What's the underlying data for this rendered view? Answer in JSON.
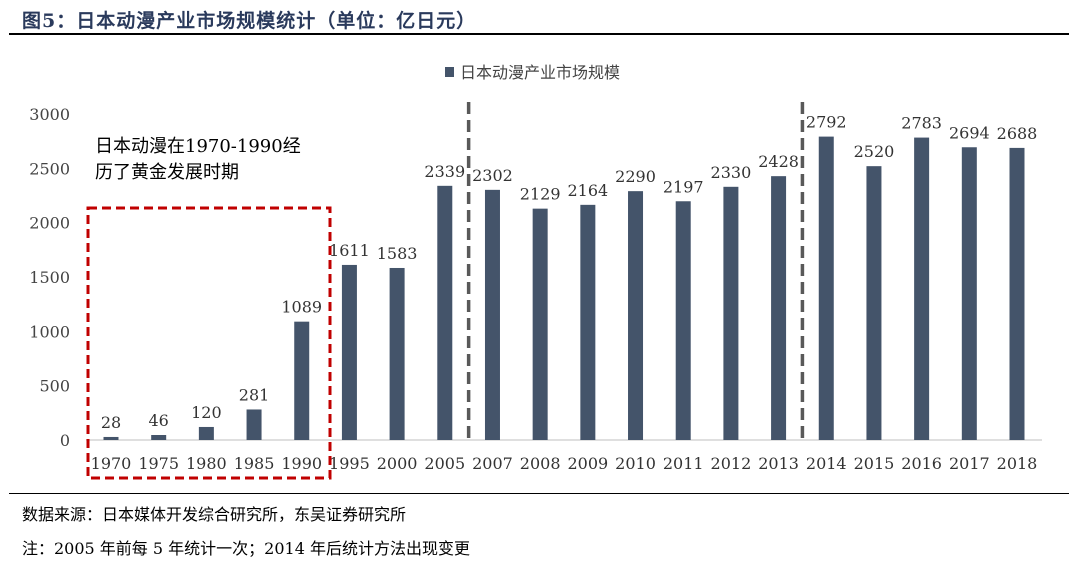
{
  "title": "图5：日本动漫产业市场规模统计（单位：亿日元）",
  "chart_data": {
    "type": "bar",
    "title": "日本动漫产业市场规模统计（单位：亿日元）",
    "legend": [
      "日本动漫产业市场规模"
    ],
    "legend_position": "top-center",
    "categories": [
      "1970",
      "1975",
      "1980",
      "1985",
      "1990",
      "1995",
      "2000",
      "2005",
      "2007",
      "2008",
      "2009",
      "2010",
      "2011",
      "2012",
      "2013",
      "2014",
      "2015",
      "2016",
      "2017",
      "2018"
    ],
    "values": [
      28,
      46,
      120,
      281,
      1089,
      1611,
      1583,
      2339,
      2302,
      2129,
      2164,
      2290,
      2197,
      2330,
      2428,
      2792,
      2520,
      2783,
      2694,
      2688
    ],
    "ylim": [
      0,
      3000
    ],
    "yticks": [
      0,
      500,
      1000,
      1500,
      2000,
      2500,
      3000
    ],
    "grid": false,
    "bar_color": "#44546a",
    "annotation": [
      "日本动漫在1970-1990经",
      "历了黄金发展时期"
    ],
    "highlight_color": "#c00000"
  },
  "footer": {
    "source": "数据来源：日本媒体开发综合研究所，东吴证券研究所",
    "note": "注：2005 年前每 5 年统计一次；2014 年后统计方法出现变更"
  }
}
